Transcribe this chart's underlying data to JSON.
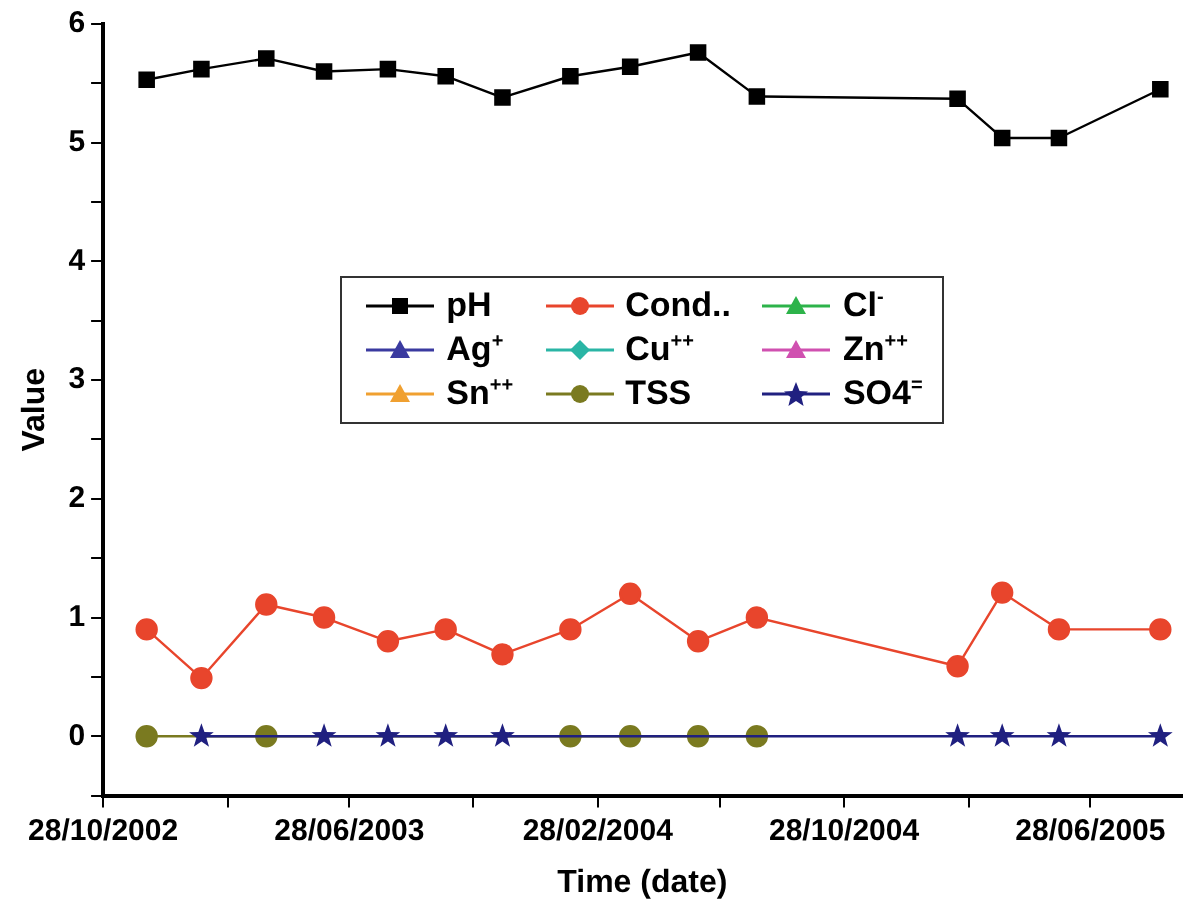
{
  "chart_data": {
    "type": "line",
    "xlabel": "Time (date)",
    "ylabel": "Value",
    "x": [
      "2002-12-10",
      "2003-02-02",
      "2003-04-07",
      "2003-06-03",
      "2003-08-05",
      "2003-10-01",
      "2003-11-26",
      "2004-02-01",
      "2004-03-31",
      "2004-06-06",
      "2004-08-03",
      "2005-02-17",
      "2005-04-02",
      "2005-05-28",
      "2005-09-05"
    ],
    "series": [
      {
        "name": "pH",
        "color": "#000000",
        "marker": "square",
        "values": [
          5.53,
          5.62,
          5.71,
          5.6,
          5.62,
          5.56,
          5.38,
          5.56,
          5.64,
          5.76,
          5.39,
          5.37,
          5.04,
          5.04,
          5.45
        ]
      },
      {
        "name": "Cond..",
        "color": "#e8452c",
        "marker": "circle",
        "values": [
          0.9,
          0.49,
          1.11,
          1.0,
          0.8,
          0.9,
          0.69,
          0.9,
          1.2,
          0.8,
          1.0,
          0.59,
          1.21,
          0.9,
          0.9
        ]
      },
      {
        "name": "Cl$^{-}$",
        "color": "#2db34a",
        "marker": "triangle",
        "values": [
          null,
          null,
          null,
          null,
          null,
          null,
          null,
          null,
          null,
          null,
          null,
          null,
          null,
          null,
          null
        ]
      },
      {
        "name": "Ag$^{+}$",
        "color": "#3a3aa0",
        "marker": "triangle",
        "values": [
          null,
          null,
          null,
          null,
          null,
          null,
          null,
          null,
          null,
          null,
          null,
          null,
          null,
          null,
          null
        ]
      },
      {
        "name": "Cu$^{++}$",
        "color": "#2ab5a5",
        "marker": "diamond",
        "values": [
          null,
          null,
          null,
          null,
          null,
          null,
          null,
          null,
          null,
          null,
          null,
          null,
          null,
          null,
          null
        ]
      },
      {
        "name": "Zn$^{++}$",
        "color": "#d050b0",
        "marker": "triangle",
        "values": [
          null,
          null,
          null,
          null,
          null,
          null,
          null,
          null,
          null,
          null,
          null,
          null,
          null,
          null,
          null
        ]
      },
      {
        "name": "Sn$^{++}$",
        "color": "#f0a030",
        "marker": "triangle",
        "values": [
          null,
          null,
          null,
          null,
          null,
          null,
          null,
          null,
          null,
          null,
          null,
          null,
          null,
          null,
          null
        ]
      },
      {
        "name": "TSS",
        "color": "#7a7a20",
        "marker": "circle",
        "values": [
          0,
          null,
          0,
          null,
          null,
          null,
          null,
          0,
          0,
          0,
          0,
          null,
          null,
          null,
          null
        ]
      },
      {
        "name": "SO4$^{=}$",
        "color": "#202080",
        "marker": "star",
        "values": [
          null,
          0,
          null,
          0,
          0,
          0,
          0,
          null,
          null,
          null,
          null,
          0,
          0,
          0,
          0
        ]
      }
    ],
    "xlim": [
      "2002-10-28",
      "2005-09-26"
    ],
    "xticks": [
      {
        "value": "2002-10-28",
        "label": "28/10/2002"
      },
      {
        "value": "2003-02-28",
        "label": null
      },
      {
        "value": "2003-06-28",
        "label": "28/06/2003"
      },
      {
        "value": "2003-10-28",
        "label": null
      },
      {
        "value": "2004-02-28",
        "label": "28/02/2004"
      },
      {
        "value": "2004-06-28",
        "label": null
      },
      {
        "value": "2004-10-28",
        "label": "28/10/2004"
      },
      {
        "value": "2005-02-28",
        "label": null
      },
      {
        "value": "2005-06-28",
        "label": "28/06/2005"
      }
    ],
    "ylim": [
      -0.5,
      6
    ],
    "yticks": [
      {
        "value": -0.5,
        "label": null
      },
      0,
      {
        "value": 0.5,
        "label": null
      },
      1,
      {
        "value": 1.5,
        "label": null
      },
      2,
      {
        "value": 2.5,
        "label": null
      },
      3,
      {
        "value": 3.5,
        "label": null
      },
      4,
      {
        "value": 4.5,
        "label": null
      },
      5,
      {
        "value": 5.5,
        "label": null
      },
      6
    ],
    "grid": false,
    "legend": "center",
    "line_style": "solid"
  }
}
